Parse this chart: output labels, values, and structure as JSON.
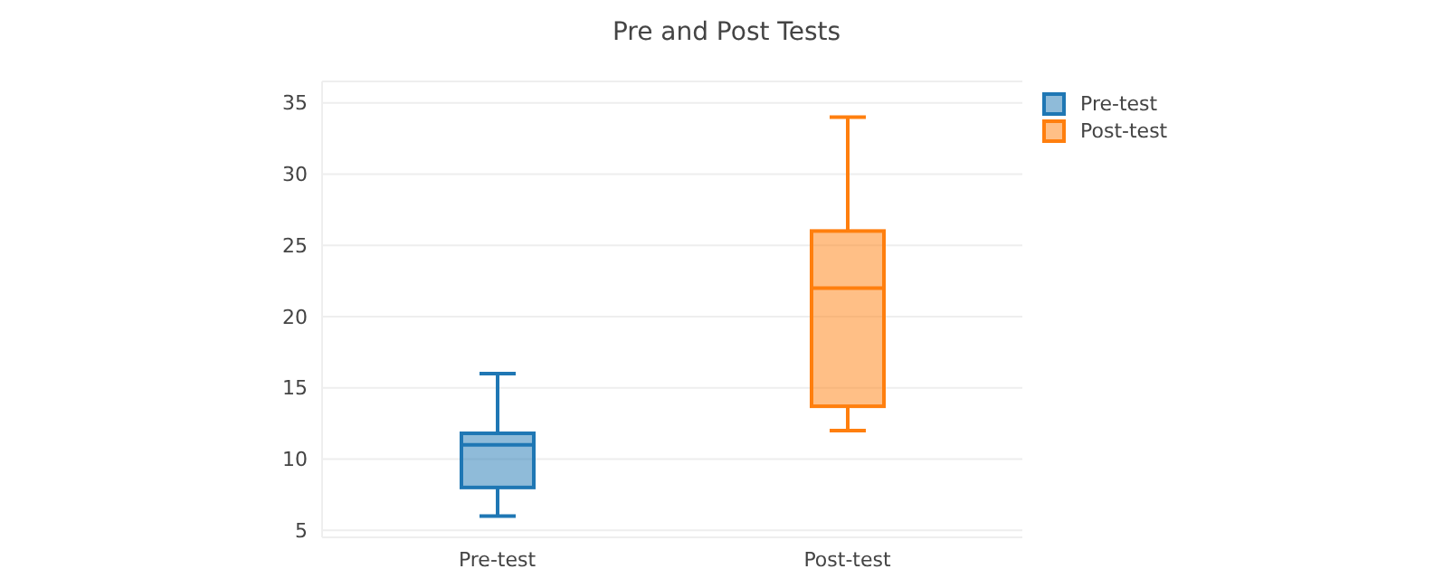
{
  "chart_data": {
    "type": "box",
    "title": "Pre and Post Tests",
    "categories": [
      "Pre-test",
      "Post-test"
    ],
    "series": [
      {
        "name": "Pre-test",
        "color": "#1f77b4",
        "boxes": [
          {
            "low": 6,
            "q1": 8,
            "median": 11,
            "q3": 11.8,
            "high": 16
          },
          null
        ]
      },
      {
        "name": "Post-test",
        "color": "#ff7f0e",
        "boxes": [
          null,
          {
            "low": 12,
            "q1": 13.7,
            "median": 22,
            "q3": 26,
            "high": 34
          }
        ]
      }
    ],
    "ylim": [
      4.5,
      36.5
    ],
    "yticks": [
      5,
      10,
      15,
      20,
      25,
      30,
      35
    ],
    "grid": "y",
    "legend": "top right"
  }
}
